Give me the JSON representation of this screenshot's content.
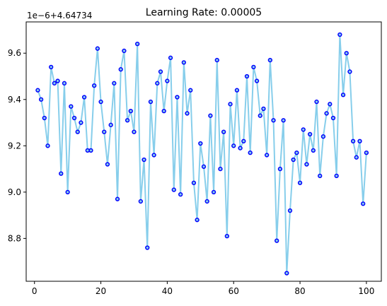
{
  "chart_data": {
    "type": "line",
    "title": "Learning Rate: 0.00005",
    "xlabel": "",
    "ylabel": "",
    "axis_offset_label": "1e−6+4.64734",
    "xlim": [
      -2.5,
      104.5
    ],
    "ylim": [
      8.615,
      9.735
    ],
    "x_ticks": [
      0,
      20,
      40,
      60,
      80,
      100
    ],
    "x_tick_labels": [
      "0",
      "20",
      "40",
      "60",
      "80",
      "100"
    ],
    "y_ticks": [
      8.8,
      9.0,
      9.2,
      9.4,
      9.6
    ],
    "y_tick_labels": [
      "8.8",
      "9.0",
      "9.2",
      "9.4",
      "9.6"
    ],
    "grid": false,
    "line_color": "#87ceeb",
    "marker_edge_color": "#0000ff",
    "marker_face_color": "#87ceeb",
    "series": [
      {
        "x": [
          1,
          2,
          3,
          4,
          5,
          6,
          7,
          8,
          9,
          10,
          11,
          12,
          13,
          14,
          15,
          16,
          17,
          18,
          19,
          20,
          21,
          22,
          23,
          24,
          25,
          26,
          27,
          28,
          29,
          30,
          31,
          32,
          33,
          34,
          35,
          36,
          37,
          38,
          39,
          40,
          41,
          42,
          43,
          44,
          45,
          46,
          47,
          48,
          49,
          50,
          51,
          52,
          53,
          54,
          55,
          56,
          57,
          58,
          59,
          60,
          61,
          62,
          63,
          64,
          65,
          66,
          67,
          68,
          69,
          70,
          71,
          72,
          73,
          74,
          75,
          76,
          77,
          78,
          79,
          80,
          81,
          82,
          83,
          84,
          85,
          86,
          87,
          88,
          89,
          90,
          91,
          92,
          93,
          94,
          95,
          96,
          97,
          98,
          99,
          100
        ],
        "values": [
          9.44,
          9.4,
          9.32,
          9.2,
          9.54,
          9.47,
          9.48,
          9.08,
          9.47,
          9.0,
          9.37,
          9.32,
          9.26,
          9.3,
          9.41,
          9.18,
          9.18,
          9.46,
          9.62,
          9.39,
          9.26,
          9.12,
          9.29,
          9.47,
          8.97,
          9.53,
          9.61,
          9.31,
          9.35,
          9.26,
          9.64,
          8.96,
          9.14,
          8.76,
          9.39,
          9.16,
          9.47,
          9.52,
          9.35,
          9.48,
          9.58,
          9.01,
          9.41,
          8.99,
          9.56,
          9.34,
          9.44,
          9.04,
          8.88,
          9.21,
          9.11,
          8.96,
          9.33,
          9.0,
          9.57,
          9.1,
          9.26,
          8.81,
          9.38,
          9.2,
          9.44,
          9.19,
          9.22,
          9.5,
          9.17,
          9.54,
          9.48,
          9.33,
          9.36,
          9.16,
          9.57,
          9.31,
          8.79,
          9.1,
          9.31,
          8.65,
          8.92,
          9.14,
          9.17,
          9.04,
          9.27,
          9.12,
          9.25,
          9.18,
          9.39,
          9.07,
          9.24,
          9.34,
          9.38,
          9.32,
          9.07,
          9.68,
          9.42,
          9.6,
          9.52,
          9.22,
          9.15,
          9.22,
          8.95,
          9.17
        ]
      }
    ]
  }
}
